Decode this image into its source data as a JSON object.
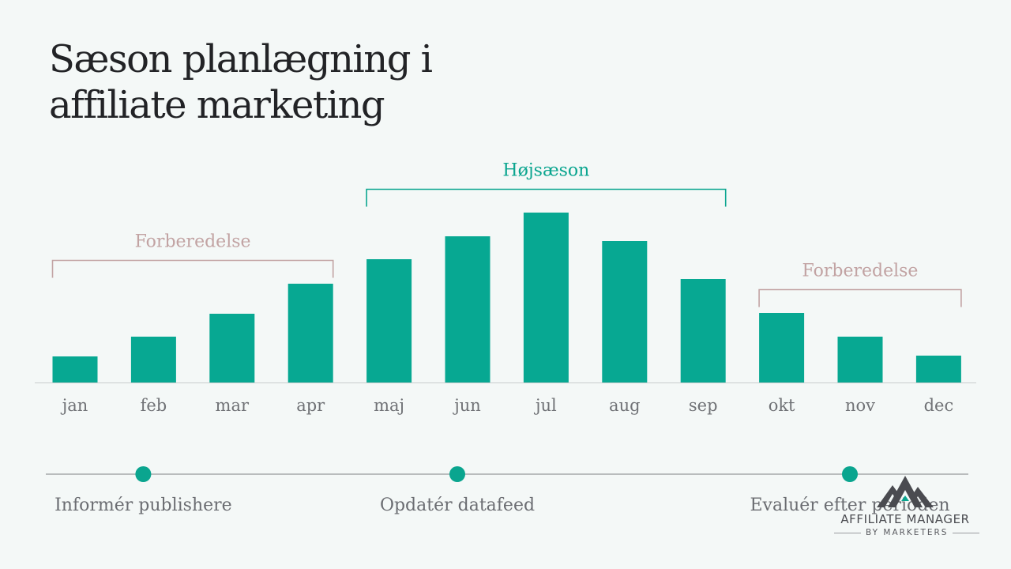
{
  "page_title": {
    "line1": "Sæson planlægning i",
    "line2": "affiliate marketing"
  },
  "chart_data": {
    "type": "bar",
    "categories": [
      "jan",
      "feb",
      "mar",
      "apr",
      "maj",
      "jun",
      "jul",
      "aug",
      "sep",
      "okt",
      "nov",
      "dec"
    ],
    "values": [
      33,
      58,
      87,
      125,
      156,
      185,
      215,
      179,
      131,
      88,
      58,
      34
    ],
    "ylim": [
      0,
      240
    ],
    "grid": false,
    "legend": "none",
    "bar_color": "#07a892",
    "periods": [
      {
        "label": "Forberedelse",
        "from": "jan",
        "to": "apr",
        "color": "#c2a3a3"
      },
      {
        "label": "Højsæson",
        "from": "maj",
        "to": "sep",
        "color": "#0aa58f"
      },
      {
        "label": "Forberedelse",
        "from": "okt",
        "to": "dec",
        "color": "#c2a3a3"
      }
    ]
  },
  "timeline": {
    "line_color": "#a5a7aa",
    "dot_color": "#0aa58f",
    "milestones": [
      {
        "label": "Informér publishere",
        "month": "feb"
      },
      {
        "label": "Opdatér datafeed",
        "month": "jun"
      },
      {
        "label": "Evaluér efter perioden",
        "month": "nov"
      }
    ]
  },
  "logo": {
    "name": "AFFILIATE MANAGER",
    "sub": "BY MARKETERS",
    "icon": "mountain-logo-icon"
  }
}
